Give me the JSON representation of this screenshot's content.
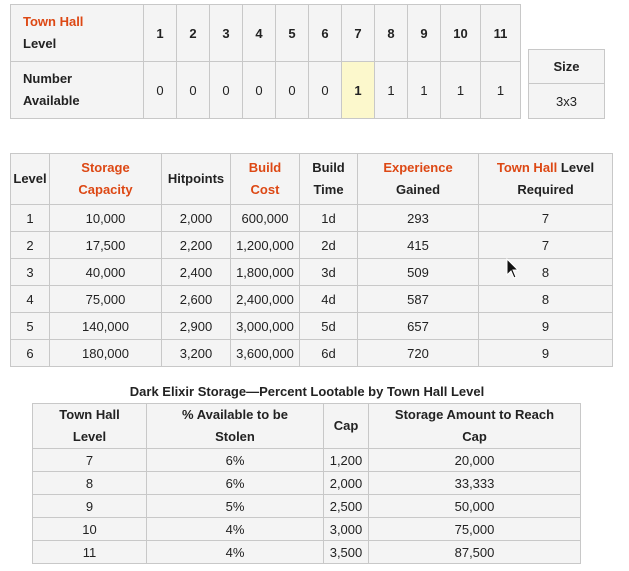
{
  "top_table": {
    "label_line1": "Town Hall",
    "label_line2": "Level",
    "levels": [
      "1",
      "2",
      "3",
      "4",
      "5",
      "6",
      "7",
      "8",
      "9",
      "10",
      "11"
    ],
    "available_label_line1": "Number",
    "available_label_line2": "Available",
    "available": [
      "0",
      "0",
      "0",
      "0",
      "0",
      "0",
      "1",
      "1",
      "1",
      "1",
      "1"
    ]
  },
  "size_table": {
    "header": "Size",
    "value": "3x3"
  },
  "main_table": {
    "headers": {
      "level": "Level",
      "storage_1": "Storage",
      "storage_2": "Capacity",
      "hitpoints": "Hitpoints",
      "build_cost_1": "Build",
      "build_cost_2": "Cost",
      "build_time_1": "Build",
      "build_time_2": "Time",
      "experience_1": "Experience",
      "experience_2": "Gained",
      "th_req_1a": "Town Hall",
      "th_req_1b": " Level",
      "th_req_2": "Required"
    },
    "rows": [
      {
        "level": "1",
        "capacity": "10,000",
        "hitpoints": "2,000",
        "cost": "600,000",
        "time": "1d",
        "xp": "293",
        "th": "7"
      },
      {
        "level": "2",
        "capacity": "17,500",
        "hitpoints": "2,200",
        "cost": "1,200,000",
        "time": "2d",
        "xp": "415",
        "th": "7"
      },
      {
        "level": "3",
        "capacity": "40,000",
        "hitpoints": "2,400",
        "cost": "1,800,000",
        "time": "3d",
        "xp": "509",
        "th": "8"
      },
      {
        "level": "4",
        "capacity": "75,000",
        "hitpoints": "2,600",
        "cost": "2,400,000",
        "time": "4d",
        "xp": "587",
        "th": "8"
      },
      {
        "level": "5",
        "capacity": "140,000",
        "hitpoints": "2,900",
        "cost": "3,000,000",
        "time": "5d",
        "xp": "657",
        "th": "9"
      },
      {
        "level": "6",
        "capacity": "180,000",
        "hitpoints": "3,200",
        "cost": "3,600,000",
        "time": "6d",
        "xp": "720",
        "th": "9"
      }
    ]
  },
  "dark_elixir": {
    "title": "Dark Elixir Storage—Percent Lootable by Town Hall Level",
    "headers": {
      "th_1": "Town Hall",
      "th_2": "Level",
      "pct_1": "% Available to be",
      "pct_2": "Stolen",
      "cap": "Cap",
      "amount_1": "Storage Amount to Reach",
      "amount_2": "Cap"
    },
    "rows": [
      {
        "th": "7",
        "pct": "6%",
        "cap": "1,200",
        "amount": "20,000"
      },
      {
        "th": "8",
        "pct": "6%",
        "cap": "2,000",
        "amount": "33,333"
      },
      {
        "th": "9",
        "pct": "5%",
        "cap": "2,500",
        "amount": "50,000"
      },
      {
        "th": "10",
        "pct": "4%",
        "cap": "3,000",
        "amount": "75,000"
      },
      {
        "th": "11",
        "pct": "4%",
        "cap": "3,500",
        "amount": "87,500"
      }
    ]
  },
  "colors": {
    "accent": "#dd4814",
    "highlight": "#fcf8cc",
    "cell_bg": "#f4f4f4",
    "border": "#c8c8c8"
  },
  "cursor": {
    "icon": "mouse-pointer-icon"
  }
}
